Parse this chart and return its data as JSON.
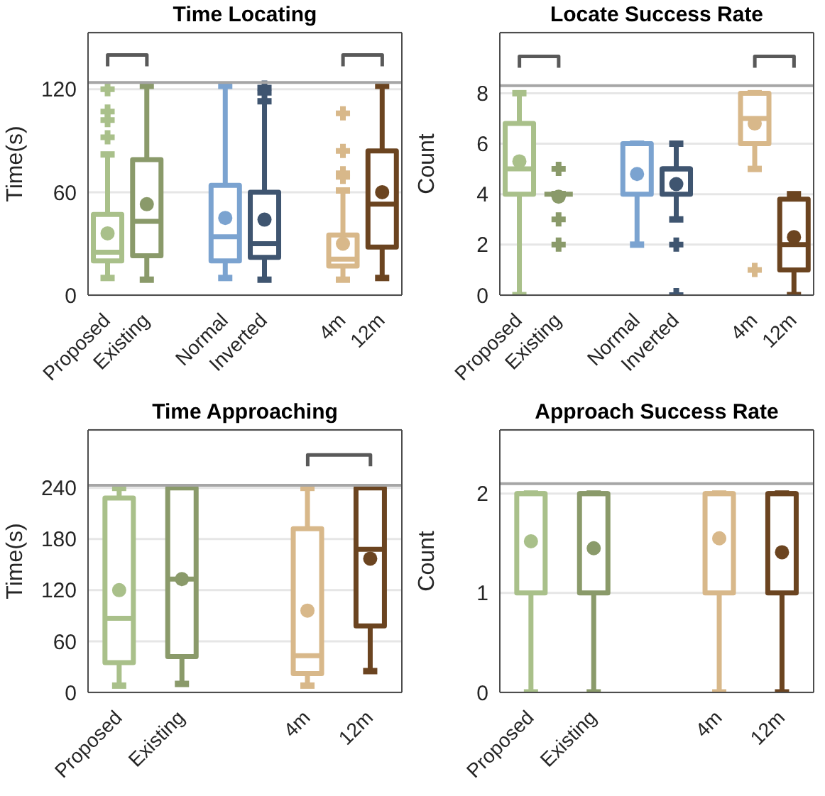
{
  "chart_data": [
    {
      "type": "box",
      "title": "Time Locating",
      "ylabel": "Time(s)",
      "categories": [
        "Proposed",
        "Existing",
        null,
        "Normal",
        "Inverted",
        null,
        "4m",
        "12m"
      ],
      "colors": [
        "#a9c08a",
        "#8a9a6a",
        null,
        "#7ba3d0",
        "#3f5570",
        null,
        "#d8b88a",
        "#6b4420"
      ],
      "boxes": [
        {
          "low": 10,
          "q1": 20,
          "median": 25,
          "q3": 47,
          "high": 82,
          "mean": 36,
          "outliers": [
            92,
            102,
            107,
            120
          ]
        },
        {
          "low": 9,
          "q1": 23,
          "median": 43,
          "q3": 79,
          "high": 122,
          "mean": 53
        },
        null,
        {
          "low": 10,
          "q1": 20,
          "median": 34,
          "q3": 64,
          "high": 122,
          "mean": 45
        },
        {
          "low": 9,
          "q1": 22,
          "median": 30,
          "q3": 60,
          "high": 113,
          "mean": 44,
          "outliers": [
            118,
            121
          ]
        },
        null,
        {
          "low": 9,
          "q1": 17,
          "median": 21,
          "q3": 35,
          "high": 61,
          "mean": 30,
          "outliers": [
            69,
            71,
            84,
            106
          ]
        },
        {
          "low": 10,
          "q1": 28,
          "median": 53,
          "q3": 84,
          "high": 122,
          "mean": 60
        }
      ],
      "ylim": [
        0,
        153
      ],
      "yticks": [
        0,
        60,
        120
      ],
      "grid": "y",
      "ref_lines": [
        {
          "axis": "y",
          "value": 124,
          "color": "#a6a6a6"
        }
      ]
    },
    {
      "type": "box",
      "title": "Locate Success Rate",
      "ylabel": "Count",
      "categories": [
        "Proposed",
        "Existing",
        null,
        "Normal",
        "Inverted",
        null,
        "4m",
        "12m"
      ],
      "colors": [
        "#a9c08a",
        "#8a9a6a",
        null,
        "#7ba3d0",
        "#3f5570",
        null,
        "#d8b88a",
        "#6b4420"
      ],
      "boxes": [
        {
          "low": 0,
          "q1": 4,
          "median": 5,
          "q3": 6.8,
          "high": 8,
          "mean": 5.3
        },
        {
          "low": 4,
          "q1": 4,
          "median": 4,
          "q3": 4,
          "high": 4,
          "mean": 3.9,
          "outliers": [
            2,
            3,
            5
          ]
        },
        null,
        {
          "low": 2,
          "q1": 4,
          "median": 6,
          "q3": 6,
          "high": 6,
          "mean": 4.8
        },
        {
          "low": 3,
          "q1": 4,
          "median": 5,
          "q3": 5,
          "high": 6,
          "mean": 4.4,
          "outliers": [
            0,
            2
          ]
        },
        null,
        {
          "low": 5,
          "q1": 6,
          "median": 7,
          "q3": 8,
          "high": 8,
          "mean": 6.8,
          "outliers": [
            1
          ]
        },
        {
          "low": 0,
          "q1": 1,
          "median": 2,
          "q3": 3.8,
          "high": 4,
          "mean": 2.3
        }
      ],
      "ylim": [
        0,
        10.4
      ],
      "yticks": [
        0,
        2,
        4,
        6,
        8
      ],
      "grid": "y",
      "ref_lines": [
        {
          "axis": "y",
          "value": 8.3,
          "color": "#a6a6a6"
        }
      ]
    },
    {
      "type": "box",
      "title": "Time Approaching",
      "ylabel": "Time(s)",
      "categories": [
        "Proposed",
        "Existing",
        null,
        "4m",
        "12m"
      ],
      "colors": [
        "#a9c08a",
        "#8a9a6a",
        null,
        "#d8b88a",
        "#6b4420"
      ],
      "boxes": [
        {
          "low": 8,
          "q1": 35,
          "median": 87,
          "q3": 228,
          "high": 240,
          "mean": 120
        },
        {
          "low": 10,
          "q1": 42,
          "median": 133,
          "q3": 240,
          "high": 240,
          "mean": 133
        },
        null,
        {
          "low": 8,
          "q1": 22,
          "median": 43,
          "q3": 192,
          "high": 240,
          "mean": 96
        },
        {
          "low": 25,
          "q1": 78,
          "median": 168,
          "q3": 240,
          "high": 240,
          "mean": 157
        }
      ],
      "ylim": [
        0,
        308
      ],
      "yticks": [
        0,
        60,
        120,
        180,
        240
      ],
      "grid": "y",
      "ref_lines": [
        {
          "axis": "y",
          "value": 243,
          "color": "#a6a6a6"
        }
      ]
    },
    {
      "type": "box",
      "title": "Approach Success Rate",
      "ylabel": "Count",
      "categories": [
        "Proposed",
        "Existing",
        null,
        "4m",
        "12m"
      ],
      "colors": [
        "#a9c08a",
        "#8a9a6a",
        null,
        "#d8b88a",
        "#6b4420"
      ],
      "boxes": [
        {
          "low": 0,
          "q1": 1,
          "median": 2,
          "q3": 2,
          "high": 2,
          "mean": 1.52
        },
        {
          "low": 0,
          "q1": 1,
          "median": 2,
          "q3": 2,
          "high": 2,
          "mean": 1.45
        },
        null,
        {
          "low": 0,
          "q1": 1,
          "median": 2,
          "q3": 2,
          "high": 2,
          "mean": 1.55
        },
        {
          "low": 0,
          "q1": 1,
          "median": 2,
          "q3": 2,
          "high": 2,
          "mean": 1.41
        }
      ],
      "ylim": [
        0,
        2.64
      ],
      "yticks": [
        0,
        1,
        2
      ],
      "grid": "y",
      "ref_lines": [
        {
          "axis": "y",
          "value": 2.1,
          "color": "#a6a6a6"
        }
      ]
    }
  ]
}
